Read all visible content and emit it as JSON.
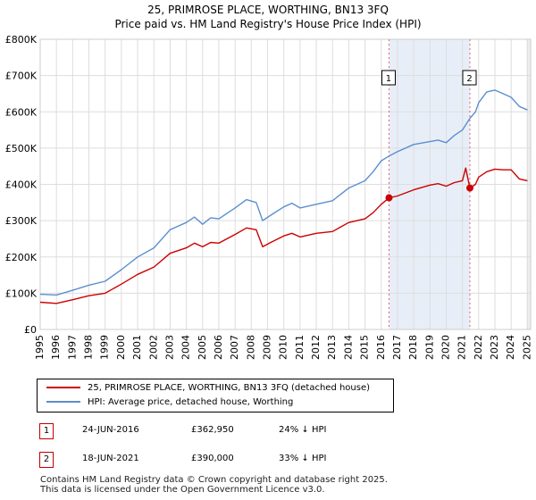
{
  "title_line1": "25, PRIMROSE PLACE, WORTHING, BN13 3FQ",
  "title_line2": "Price paid vs. HM Land Registry's House Price Index (HPI)",
  "legend": {
    "property": "25, PRIMROSE PLACE, WORTHING, BN13 3FQ (detached house)",
    "hpi": "HPI: Average price, detached house, Worthing"
  },
  "transactions": [
    {
      "num": "1",
      "date": "24-JUN-2016",
      "price": "£362,950",
      "delta": "24% ↓ HPI"
    },
    {
      "num": "2",
      "date": "18-JUN-2021",
      "price": "£390,000",
      "delta": "33% ↓ HPI"
    }
  ],
  "footer": {
    "line1": "Contains HM Land Registry data © Crown copyright and database right 2025.",
    "line2": "This data is licensed under the Open Government Licence v3.0."
  },
  "colors": {
    "property": "#cc0000",
    "hpi": "#5b8fd0",
    "shade": "#e8eef8",
    "marker_line": "#e06666"
  },
  "chart_data": {
    "type": "line",
    "xlim": [
      1995.0,
      2025.2
    ],
    "ylim": [
      0,
      800000
    ],
    "yticks": [
      0,
      100000,
      200000,
      300000,
      400000,
      500000,
      600000,
      700000,
      800000
    ],
    "ytick_labels": [
      "£0",
      "£100K",
      "£200K",
      "£300K",
      "£400K",
      "£500K",
      "£600K",
      "£700K",
      "£800K"
    ],
    "xticks": [
      1995,
      1996,
      1997,
      1998,
      1999,
      2000,
      2001,
      2002,
      2003,
      2004,
      2005,
      2006,
      2007,
      2008,
      2009,
      2010,
      2011,
      2012,
      2013,
      2014,
      2015,
      2016,
      2017,
      2018,
      2019,
      2020,
      2021,
      2022,
      2023,
      2024,
      2025
    ],
    "xtick_labels": [
      "1995",
      "1996",
      "1997",
      "1998",
      "1999",
      "2000",
      "2001",
      "2002",
      "2003",
      "2004",
      "2005",
      "2006",
      "2007",
      "2008",
      "2009",
      "2010",
      "2011",
      "2012",
      "2013",
      "2014",
      "2015",
      "2016",
      "2017",
      "2018",
      "2019",
      "2020",
      "2021",
      "2022",
      "2023",
      "2024",
      "2025"
    ],
    "shaded_range": [
      2016.48,
      2021.46
    ],
    "grid": true,
    "series": [
      {
        "name": "25, PRIMROSE PLACE, WORTHING, BN13 3FQ (detached house)",
        "x": [
          1995.0,
          1996.0,
          1997.0,
          1998.0,
          1999.0,
          2000.0,
          2001.0,
          2002.0,
          2003.0,
          2004.0,
          2004.5,
          2005.0,
          2005.5,
          2006.0,
          2007.0,
          2007.7,
          2008.3,
          2008.7,
          2009.2,
          2010.0,
          2010.5,
          2011.0,
          2012.0,
          2013.0,
          2014.0,
          2015.0,
          2015.5,
          2016.0,
          2016.48,
          2017.0,
          2018.0,
          2019.0,
          2019.5,
          2020.0,
          2020.5,
          2021.0,
          2021.2,
          2021.46,
          2021.8,
          2022.0,
          2022.5,
          2023.0,
          2023.5,
          2024.0,
          2024.5,
          2025.0
        ],
        "values": [
          75000,
          72000,
          82000,
          93000,
          100000,
          125000,
          152000,
          172000,
          210000,
          225000,
          238000,
          228000,
          240000,
          238000,
          262000,
          280000,
          275000,
          228000,
          240000,
          258000,
          265000,
          255000,
          265000,
          270000,
          295000,
          305000,
          322000,
          345000,
          362950,
          368000,
          385000,
          398000,
          402000,
          395000,
          405000,
          410000,
          445000,
          390000,
          400000,
          420000,
          435000,
          442000,
          440000,
          440000,
          415000,
          410000
        ]
      },
      {
        "name": "HPI: Average price, detached house, Worthing",
        "x": [
          1995.0,
          1996.0,
          1997.0,
          1998.0,
          1999.0,
          2000.0,
          2001.0,
          2002.0,
          2003.0,
          2004.0,
          2004.5,
          2005.0,
          2005.5,
          2006.0,
          2007.0,
          2007.7,
          2008.3,
          2008.7,
          2009.2,
          2010.0,
          2010.5,
          2011.0,
          2012.0,
          2013.0,
          2014.0,
          2015.0,
          2015.5,
          2016.0,
          2016.48,
          2017.0,
          2018.0,
          2019.0,
          2019.5,
          2020.0,
          2020.5,
          2021.0,
          2021.46,
          2021.8,
          2022.0,
          2022.5,
          2023.0,
          2023.5,
          2024.0,
          2024.5,
          2025.0
        ],
        "values": [
          97000,
          95000,
          108000,
          122000,
          133000,
          165000,
          200000,
          225000,
          275000,
          295000,
          310000,
          290000,
          308000,
          305000,
          335000,
          358000,
          350000,
          300000,
          315000,
          338000,
          348000,
          335000,
          345000,
          355000,
          390000,
          410000,
          435000,
          465000,
          478000,
          490000,
          510000,
          518000,
          522000,
          515000,
          535000,
          550000,
          582000,
          600000,
          625000,
          655000,
          660000,
          650000,
          640000,
          615000,
          605000
        ]
      }
    ],
    "markers": [
      {
        "label": "1",
        "x": 2016.48,
        "value": 362950
      },
      {
        "label": "2",
        "x": 2021.46,
        "value": 390000
      }
    ]
  }
}
